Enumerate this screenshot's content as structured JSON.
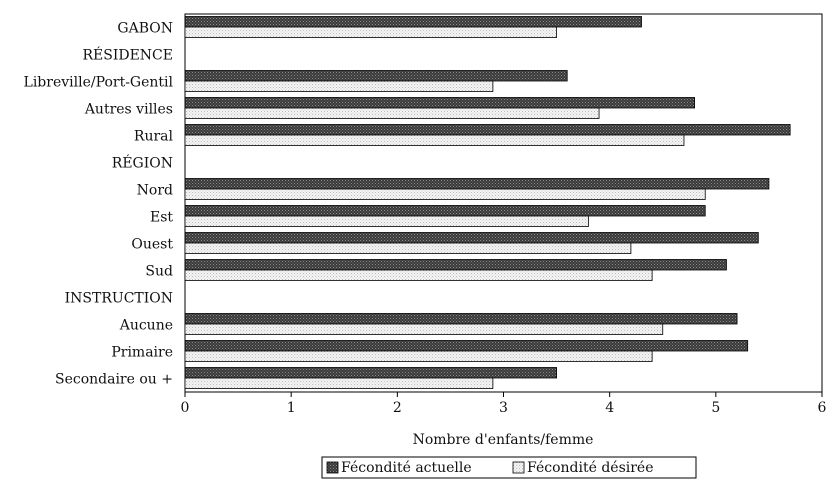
{
  "chart_data": {
    "type": "bar",
    "orientation": "horizontal",
    "categories": [
      "GABON",
      "RÉSIDENCE",
      "Libreville/Port-Gentil",
      "Autres villes",
      "Rural",
      "RÉGION",
      "Nord",
      "Est",
      "Ouest",
      "Sud",
      "INSTRUCTION",
      "Aucune",
      "Primaire",
      "Secondaire ou +"
    ],
    "series": [
      {
        "name": "Fécondité actuelle",
        "color": "#3a3a3a",
        "values": [
          4.3,
          null,
          3.6,
          4.8,
          5.7,
          null,
          5.5,
          4.9,
          5.4,
          5.1,
          null,
          5.2,
          5.3,
          3.5
        ]
      },
      {
        "name": "Fécondité désirée",
        "color": "#ededed",
        "values": [
          3.5,
          null,
          2.9,
          3.9,
          4.7,
          null,
          4.9,
          3.8,
          4.2,
          4.4,
          null,
          4.5,
          4.4,
          2.9
        ]
      }
    ],
    "xlabel": "Nombre d'enfants/femme",
    "xlim": [
      0,
      6
    ],
    "xticks": [
      "0",
      "1",
      "2",
      "3",
      "4",
      "5",
      "6"
    ],
    "grid": false,
    "legend_position": "bottom"
  }
}
